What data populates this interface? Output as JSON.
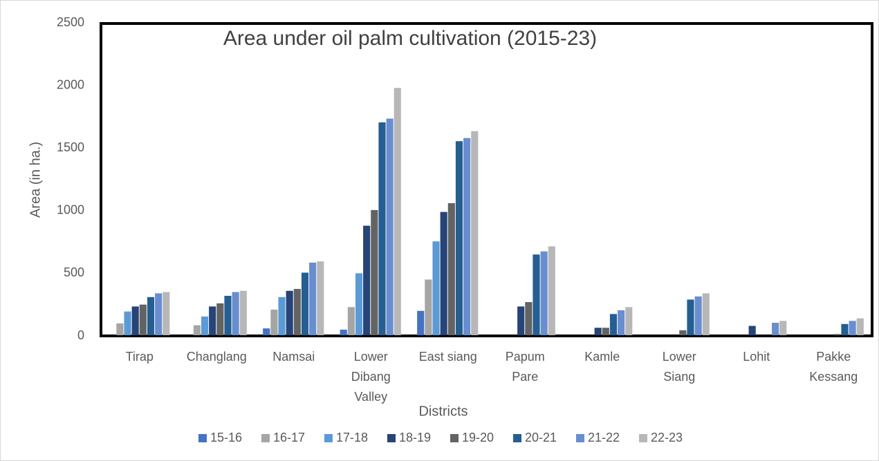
{
  "chart_data": {
    "type": "bar",
    "title": "Area under oil palm cultivation (2015-23)",
    "x_label": "Districts",
    "y_label": "Area (in ha.)",
    "categories": [
      "Tirap",
      "Changlang",
      "Namsai",
      "Lower\nDibang\nValley",
      "East siang",
      "Papum\nPare",
      "Kamle",
      "Lower\nSiang",
      "Lohit",
      "Pakke\nKessang"
    ],
    "series": [
      {
        "name": "15-16",
        "color": "#4472c4",
        "values": [
          5,
          5,
          60,
          50,
          200,
          5,
          0,
          0,
          0,
          0
        ]
      },
      {
        "name": "16-17",
        "color": "#a5a5a5",
        "values": [
          100,
          85,
          210,
          230,
          450,
          0,
          0,
          0,
          0,
          0
        ]
      },
      {
        "name": "17-18",
        "color": "#5b9bd5",
        "values": [
          195,
          155,
          310,
          500,
          755,
          0,
          0,
          0,
          0,
          0
        ]
      },
      {
        "name": "18-19",
        "color": "#264478",
        "values": [
          235,
          235,
          360,
          880,
          990,
          235,
          65,
          0,
          80,
          0
        ]
      },
      {
        "name": "19-20",
        "color": "#636363",
        "values": [
          250,
          260,
          375,
          1005,
          1060,
          270,
          65,
          45,
          0,
          15
        ]
      },
      {
        "name": "20-21",
        "color": "#255e91",
        "values": [
          310,
          320,
          505,
          1705,
          1555,
          650,
          175,
          290,
          0,
          95
        ]
      },
      {
        "name": "21-22",
        "color": "#698ed0",
        "values": [
          340,
          350,
          585,
          1735,
          1580,
          675,
          205,
          315,
          105,
          120
        ]
      },
      {
        "name": "22-23",
        "color": "#b7b7b7",
        "values": [
          350,
          360,
          595,
          1980,
          1635,
          715,
          230,
          340,
          120,
          140
        ]
      }
    ],
    "ylim": [
      0,
      2500
    ],
    "yticks": [
      0,
      500,
      1000,
      1500,
      2000,
      2500
    ],
    "grid": false,
    "legend": "bottom"
  }
}
